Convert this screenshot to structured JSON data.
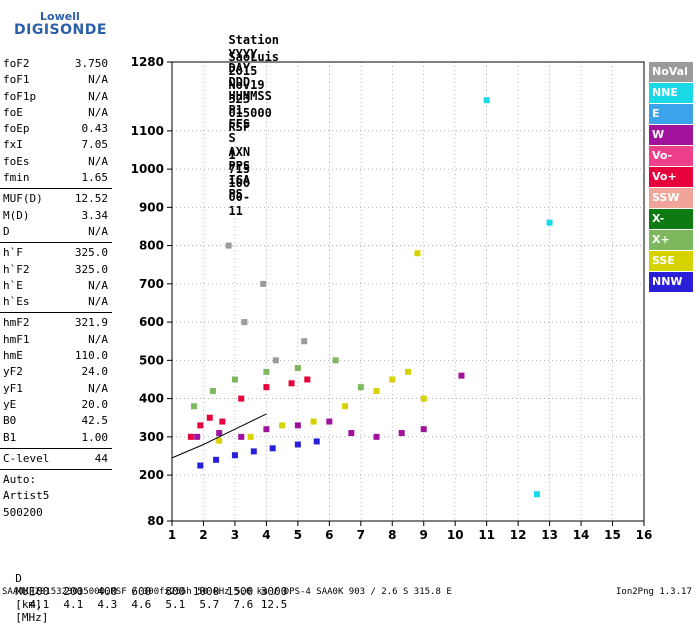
{
  "logo": {
    "top": "Lowell",
    "main": "DIGISONDE"
  },
  "header": {
    "labels": [
      "Station",
      "YYYY",
      "DAY",
      "DDD",
      "HHMMSS",
      "P1",
      "FFS",
      "S",
      "AXN",
      "PPS",
      "IGA",
      "PS"
    ],
    "values": [
      "SaoLuis",
      "2015",
      "Nov19",
      "323",
      "015000",
      "RSF",
      "1",
      "715",
      "100",
      "00-",
      "11"
    ]
  },
  "params_group1": [
    {
      "name": "foF2",
      "value": "3.750"
    },
    {
      "name": "foF1",
      "value": "N/A"
    },
    {
      "name": "foF1p",
      "value": "N/A"
    },
    {
      "name": "foE",
      "value": "N/A"
    },
    {
      "name": "foEp",
      "value": "0.43"
    },
    {
      "name": "fxI",
      "value": "7.05"
    },
    {
      "name": "foEs",
      "value": "N/A"
    },
    {
      "name": "fmin",
      "value": "1.65"
    }
  ],
  "params_group2": [
    {
      "name": "MUF(D)",
      "value": "12.52"
    },
    {
      "name": "M(D)",
      "value": "3.34"
    },
    {
      "name": "D",
      "value": "N/A"
    }
  ],
  "params_group3": [
    {
      "name": "h`F",
      "value": "325.0"
    },
    {
      "name": "h`F2",
      "value": "325.0"
    },
    {
      "name": "h`E",
      "value": "N/A"
    },
    {
      "name": "h`Es",
      "value": "N/A"
    }
  ],
  "params_group4": [
    {
      "name": "hmF2",
      "value": "321.9"
    },
    {
      "name": "hmF1",
      "value": "N/A"
    },
    {
      "name": "hmE",
      "value": "110.0"
    },
    {
      "name": "yF2",
      "value": "24.0"
    },
    {
      "name": "yF1",
      "value": "N/A"
    },
    {
      "name": "yE",
      "value": "20.0"
    },
    {
      "name": "B0",
      "value": "42.5"
    },
    {
      "name": "B1",
      "value": "1.00"
    }
  ],
  "params_group5": [
    {
      "name": "C-level",
      "value": "44"
    }
  ],
  "scaler": [
    "Auto:",
    "Artist5",
    "500200"
  ],
  "legend": [
    {
      "label": "NoVal",
      "color": "#9a9a9a"
    },
    {
      "label": "NNE",
      "color": "#19d9e6"
    },
    {
      "label": "E",
      "color": "#3aa3ea"
    },
    {
      "label": "W",
      "color": "#a0129c"
    },
    {
      "label": "Vo-",
      "color": "#ee3f8b"
    },
    {
      "label": "Vo+",
      "color": "#e6003c"
    },
    {
      "label": "SSW",
      "color": "#f0a49a"
    },
    {
      "label": "X-",
      "color": "#0d7a12"
    },
    {
      "label": "X+",
      "color": "#7db85e"
    },
    {
      "label": "SSE",
      "color": "#d7d300"
    },
    {
      "label": "NNW",
      "color": "#2a1fd8"
    }
  ],
  "chart_data": {
    "type": "scatter",
    "x_ticks": [
      1,
      2,
      3,
      4,
      5,
      6,
      7,
      8,
      9,
      10,
      11,
      12,
      13,
      14,
      15,
      16
    ],
    "y_ticks": [
      80,
      200,
      300,
      400,
      500,
      600,
      700,
      800,
      900,
      1000,
      1100,
      1280
    ],
    "xlim": [
      1,
      16
    ],
    "ylim": [
      80,
      1280
    ],
    "grid": true,
    "series": [
      {
        "name": "NNW",
        "x": [
          1.9,
          2.4,
          3.0,
          3.6,
          4.2,
          5.0,
          5.6
        ],
        "y": [
          225,
          240,
          252,
          262,
          270,
          280,
          288
        ]
      },
      {
        "name": "W",
        "x": [
          1.8,
          2.5,
          3.2,
          4.0,
          5.0,
          6.0,
          6.7,
          7.5,
          8.3,
          9.0,
          10.2
        ],
        "y": [
          300,
          310,
          300,
          320,
          330,
          340,
          310,
          300,
          310,
          320,
          460
        ]
      },
      {
        "name": "Vo+",
        "x": [
          1.6,
          1.9,
          2.2,
          2.6,
          3.2,
          4.0,
          4.8,
          5.3
        ],
        "y": [
          300,
          330,
          350,
          340,
          400,
          430,
          440,
          450
        ]
      },
      {
        "name": "SSE",
        "x": [
          2.5,
          3.5,
          4.5,
          5.5,
          6.5,
          7.5,
          8.0,
          8.5,
          9.0,
          8.8
        ],
        "y": [
          290,
          300,
          330,
          340,
          380,
          420,
          450,
          470,
          400,
          780
        ]
      },
      {
        "name": "X+",
        "x": [
          1.7,
          2.3,
          3.0,
          4.0,
          5.0,
          6.2,
          7.0
        ],
        "y": [
          380,
          420,
          450,
          470,
          480,
          500,
          430
        ]
      },
      {
        "name": "NoVal",
        "x": [
          2.8,
          3.3,
          3.9,
          4.3,
          5.2
        ],
        "y": [
          800,
          600,
          700,
          500,
          550
        ]
      },
      {
        "name": "NNE",
        "x": [
          11.0,
          12.6,
          13.0
        ],
        "y": [
          1180,
          150,
          860
        ]
      }
    ],
    "trace": {
      "x": [
        1.0,
        2.0,
        3.0,
        4.0
      ],
      "y": [
        245,
        280,
        320,
        360
      ]
    },
    "d_row_label": "D",
    "d_values": [
      "100",
      "200",
      "400",
      "600",
      "800",
      "1000",
      "1500",
      "3000"
    ],
    "d_unit": "[km]",
    "muf_row_label": "MUF",
    "muf_values": [
      "4.1",
      "4.1",
      "4.3",
      "4.6",
      "5.1",
      "5.7",
      "7.6",
      "12.5"
    ],
    "muf_unit": "[MHz]"
  },
  "footer": {
    "left": "SAA0K_2015323015000.RSF / 300fx256h 50 kHz 5.0 km / DPS-4 SAA0K 903 / 2.6 S 315.8 E",
    "right": "Ion2Png 1.3.17"
  }
}
